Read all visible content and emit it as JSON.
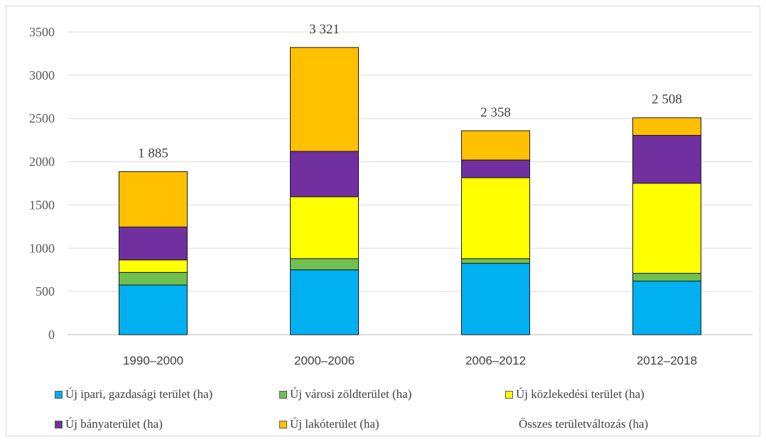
{
  "chart_data": {
    "type": "bar",
    "stacked": true,
    "categories": [
      "1990–2000",
      "2000–2006",
      "2006–2012",
      "2012–2018"
    ],
    "series": [
      {
        "name": "Új ipari, gazdasági terület (ha)",
        "color": "#00b0f0",
        "values": [
          575,
          750,
          825,
          620
        ]
      },
      {
        "name": "Új városi zöldterület (ha)",
        "color": "#70c04f",
        "values": [
          145,
          130,
          55,
          90
        ]
      },
      {
        "name": "Új közlekedési terület (ha)",
        "color": "#ffff00",
        "values": [
          145,
          715,
          935,
          1040
        ]
      },
      {
        "name": "Új bányaterület (ha)",
        "color": "#7030a0",
        "values": [
          380,
          525,
          205,
          555
        ]
      },
      {
        "name": "Új lakóterület (ha)",
        "color": "#ffc000",
        "values": [
          640,
          1201,
          338,
          203
        ]
      }
    ],
    "totals": {
      "name": "Összes területváltozás (ha)",
      "values": [
        1885,
        3321,
        2358,
        2508
      ],
      "labels": [
        "1 885",
        "3 321",
        "2 358",
        "2 508"
      ]
    },
    "ylim": [
      0,
      3500
    ],
    "yticks": [
      "0",
      "500",
      "1000",
      "1500",
      "2000",
      "2500",
      "3000",
      "3500"
    ],
    "grid": true,
    "legend_position": "bottom"
  }
}
